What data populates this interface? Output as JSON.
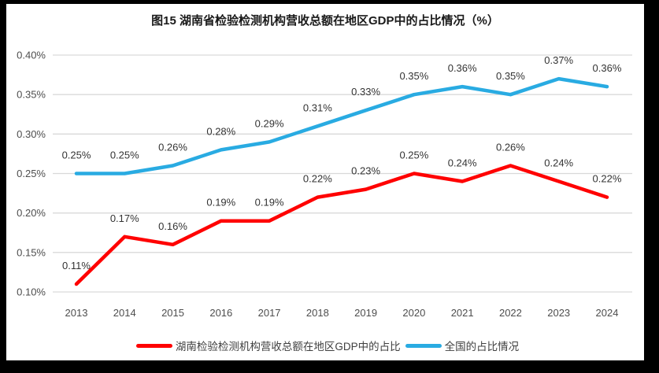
{
  "chart_data": {
    "type": "line",
    "title": "图15 湖南省检验检测机构营收总额在地区GDP中的占比情况（%）",
    "categories": [
      "2013",
      "2014",
      "2015",
      "2016",
      "2017",
      "2018",
      "2019",
      "2020",
      "2021",
      "2022",
      "2023",
      "2024"
    ],
    "series": [
      {
        "name": "湖南检验检测机构营收总额在地区GDP中的占比",
        "color": "#ff0000",
        "values": [
          0.11,
          0.17,
          0.16,
          0.19,
          0.19,
          0.22,
          0.23,
          0.25,
          0.24,
          0.26,
          0.24,
          0.22
        ],
        "point_labels": [
          "0.11%",
          "0.17%",
          "0.16%",
          "0.19%",
          "0.19%",
          "0.22%",
          "0.23%",
          "0.25%",
          "0.24%",
          "0.26%",
          "0.24%",
          "0.22%"
        ]
      },
      {
        "name": "全国的占比情况",
        "color": "#29abe2",
        "values": [
          0.25,
          0.25,
          0.26,
          0.28,
          0.29,
          0.31,
          0.33,
          0.35,
          0.36,
          0.35,
          0.37,
          0.36
        ],
        "point_labels": [
          "0.25%",
          "0.25%",
          "0.26%",
          "0.28%",
          "0.29%",
          "0.31%",
          "0.33%",
          "0.35%",
          "0.36%",
          "0.35%",
          "0.37%",
          "0.36%"
        ]
      }
    ],
    "y_axis": {
      "min": 0.1,
      "max": 0.4,
      "step": 0.05,
      "tick_values": [
        0.1,
        0.15,
        0.2,
        0.25,
        0.3,
        0.35,
        0.4
      ],
      "tick_labels": [
        "0.10%",
        "0.15%",
        "0.20%",
        "0.25%",
        "0.30%",
        "0.35%",
        "0.40%"
      ]
    },
    "xlabel": "",
    "ylabel": "",
    "grid": true,
    "grid_color": "#d9d9d9",
    "tick_color": "#4d4d4d",
    "data_label_color": "#333333",
    "legend_position": "bottom"
  }
}
